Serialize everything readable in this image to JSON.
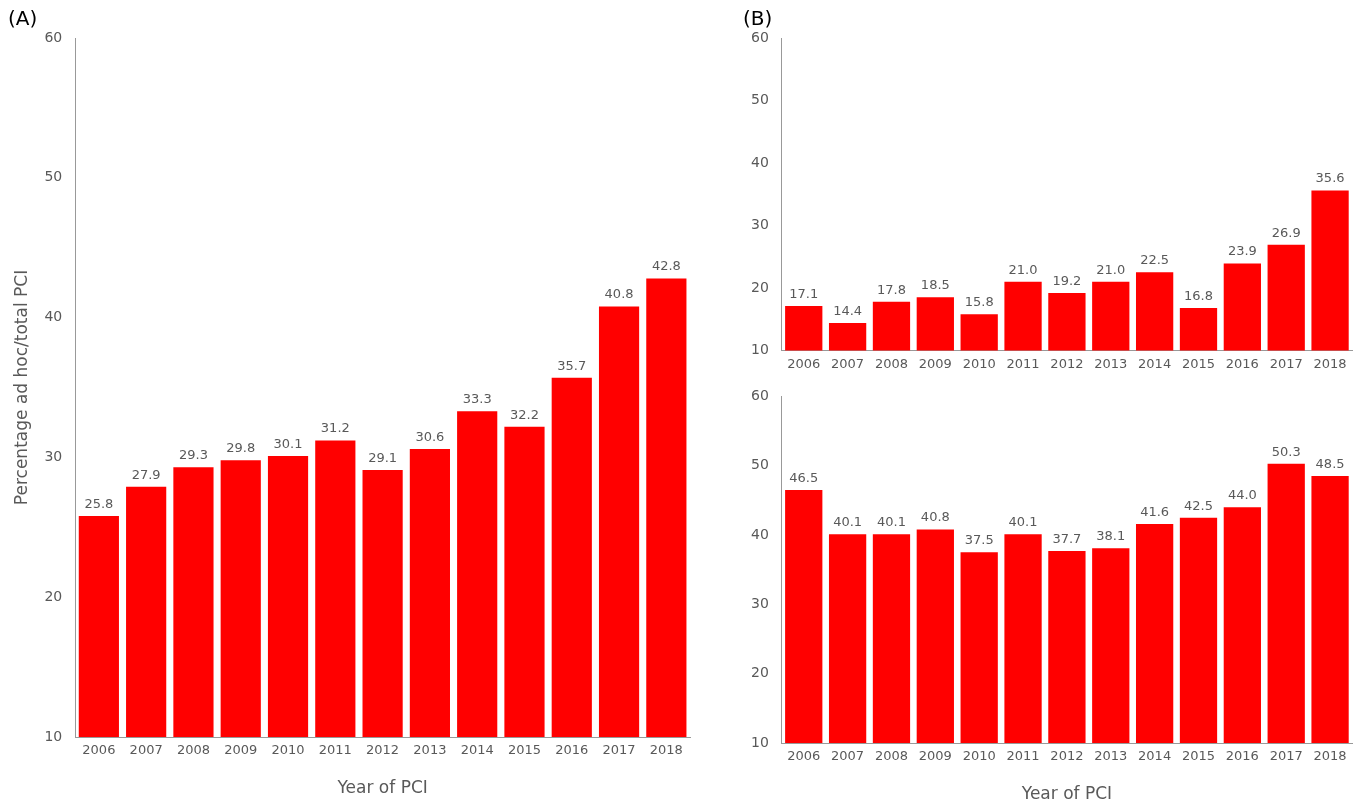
{
  "chart_data": [
    {
      "type": "bar",
      "title": "(A)",
      "xlabel": "Year of PCI",
      "ylabel": "Percentage ad hoc/total PCI",
      "categories": [
        "2006",
        "2007",
        "2008",
        "2009",
        "2010",
        "2011",
        "2012",
        "2013",
        "2014",
        "2015",
        "2016",
        "2017",
        "2018"
      ],
      "values": [
        25.8,
        27.9,
        29.3,
        29.8,
        30.1,
        31.2,
        29.1,
        30.6,
        33.3,
        32.2,
        35.7,
        40.8,
        42.8
      ],
      "value_labels": [
        "25.8",
        "27.9",
        "29.3",
        "29.8",
        "30.1",
        "31.2",
        "29.1",
        "30.6",
        "33.3",
        "32.2",
        "35.7",
        "40.8",
        "42.8"
      ],
      "color": "#ff0000",
      "ylim": [
        10,
        60
      ],
      "yticks": [
        10,
        20,
        30,
        40,
        50,
        60
      ],
      "grid": false
    },
    {
      "type": "bar",
      "title": "(B)",
      "categories": [
        "2006",
        "2007",
        "2008",
        "2009",
        "2010",
        "2011",
        "2012",
        "2013",
        "2014",
        "2015",
        "2016",
        "2017",
        "2018"
      ],
      "values": [
        17.1,
        14.4,
        17.8,
        18.5,
        15.8,
        21.0,
        19.2,
        21.0,
        22.5,
        16.8,
        23.9,
        26.9,
        35.6
      ],
      "value_labels": [
        "17.1",
        "14.4",
        "17.8",
        "18.5",
        "15.8",
        "21.0",
        "19.2",
        "21.0",
        "22.5",
        "16.8",
        "23.9",
        "26.9",
        "35.6"
      ],
      "color": "#ff0000",
      "ylim": [
        10,
        60
      ],
      "yticks": [
        10,
        20,
        30,
        40,
        50,
        60
      ],
      "grid": false
    },
    {
      "type": "bar",
      "xlabel": "Year of PCI",
      "categories": [
        "2006",
        "2007",
        "2008",
        "2009",
        "2010",
        "2011",
        "2012",
        "2013",
        "2014",
        "2015",
        "2016",
        "2017",
        "2018"
      ],
      "values": [
        46.5,
        40.1,
        40.1,
        40.8,
        37.5,
        40.1,
        37.7,
        38.1,
        41.6,
        42.5,
        44.0,
        50.3,
        48.5
      ],
      "value_labels": [
        "46.5",
        "40.1",
        "40.1",
        "40.8",
        "37.5",
        "40.1",
        "37.7",
        "38.1",
        "41.6",
        "42.5",
        "44.0",
        "50.3",
        "48.5"
      ],
      "color": "#ff0000",
      "ylim": [
        10,
        60
      ],
      "yticks": [
        10,
        20,
        30,
        40,
        50,
        60
      ],
      "grid": false
    }
  ]
}
